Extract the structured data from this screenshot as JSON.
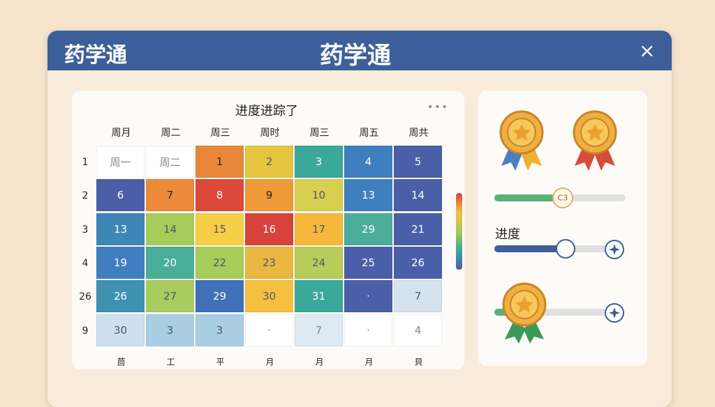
{
  "header": {
    "title_left": "药学通",
    "title_center": "药学通"
  },
  "tracker": {
    "title": "进度进踪了",
    "columns": [
      "周月",
      "周二",
      "周三",
      "周时",
      "周三",
      "周五",
      "周共"
    ],
    "rows": [
      "1",
      "2",
      "3",
      "4",
      "26",
      "9"
    ],
    "cells": [
      [
        {
          "text": "周一",
          "color": "#ffffff"
        },
        {
          "text": "周二",
          "color": "#ffffff"
        },
        {
          "text": "1",
          "color": "#e8873a"
        },
        {
          "text": "2",
          "color": "#e5c53f"
        },
        {
          "text": "3",
          "color": "#3aa89a"
        },
        {
          "text": "4",
          "color": "#3f7fbf"
        },
        {
          "text": "5",
          "color": "#4a5fa8"
        }
      ],
      [
        {
          "text": "6",
          "color": "#4a5fa8"
        },
        {
          "text": "7",
          "color": "#ec8a3a"
        },
        {
          "text": "8",
          "color": "#dc4a3a"
        },
        {
          "text": "9",
          "color": "#f09a3a"
        },
        {
          "text": "10",
          "color": "#d6cf50"
        },
        {
          "text": "13",
          "color": "#3f7fbf"
        },
        {
          "text": "14",
          "color": "#4a5fa8"
        }
      ],
      [
        {
          "text": "13",
          "color": "#3f86b8"
        },
        {
          "text": "14",
          "color": "#a6cc5a"
        },
        {
          "text": "15",
          "color": "#f5cf45"
        },
        {
          "text": "16",
          "color": "#d8423a"
        },
        {
          "text": "17",
          "color": "#f5b83a"
        },
        {
          "text": "29",
          "color": "#4aae9a"
        },
        {
          "text": "21",
          "color": "#4a5fa8"
        }
      ],
      [
        {
          "text": "19",
          "color": "#3f7fbf"
        },
        {
          "text": "20",
          "color": "#49ad9a"
        },
        {
          "text": "22",
          "color": "#a6cc5a"
        },
        {
          "text": "23",
          "color": "#e8b840"
        },
        {
          "text": "24",
          "color": "#b8cc5a"
        },
        {
          "text": "25",
          "color": "#4a5fa8"
        },
        {
          "text": "26",
          "color": "#4a5fa8"
        }
      ],
      [
        {
          "text": "26",
          "color": "#3f91b0"
        },
        {
          "text": "27",
          "color": "#a8cc60"
        },
        {
          "text": "29",
          "color": "#3f70b8"
        },
        {
          "text": "30",
          "color": "#f5c040"
        },
        {
          "text": "31",
          "color": "#3aa89a"
        },
        {
          "text": "·",
          "color": "#4a5fa8"
        },
        {
          "text": "7",
          "color": "#d5e3ee"
        }
      ],
      [
        {
          "text": "30",
          "color": "#cddff0"
        },
        {
          "text": "3",
          "color": "#a9cde3"
        },
        {
          "text": "3",
          "color": "#a9cde3"
        },
        {
          "text": "·",
          "color": "#ffffff"
        },
        {
          "text": "7",
          "color": "#dde9f3"
        },
        {
          "text": "·",
          "color": "#ffffff"
        },
        {
          "text": "4",
          "color": "#ffffff"
        }
      ]
    ],
    "footer": [
      "茴",
      "工",
      "平",
      "月",
      "月",
      "月",
      "貝"
    ]
  },
  "side": {
    "thumb_label": "C3",
    "progress_label": "进度"
  }
}
